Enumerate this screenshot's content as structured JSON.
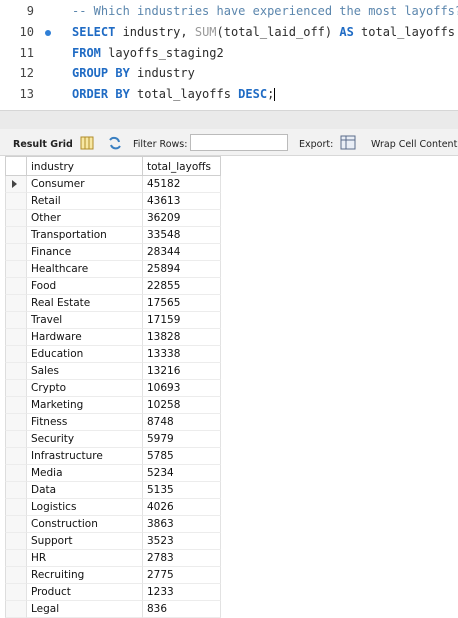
{
  "editor": {
    "lines": [
      {
        "number": 9,
        "tokens": [
          {
            "text": "-- Which industries have experienced the most layoffs?",
            "color": "#5b86ad"
          }
        ]
      },
      {
        "number": 10,
        "tokens": [
          {
            "text": "SELECT",
            "color": "#1f6bc4"
          },
          {
            "text": " industry, ",
            "color": "#2b2b2b"
          },
          {
            "text": "SUM",
            "color": "#9a9a9a"
          },
          {
            "text": "(total_laid_off) ",
            "color": "#2b2b2b"
          },
          {
            "text": "AS",
            "color": "#1f6bc4"
          },
          {
            "text": " total_layoffs",
            "color": "#2b2b2b"
          }
        ]
      },
      {
        "number": 11,
        "tokens": [
          {
            "text": "FROM",
            "color": "#1f6bc4"
          },
          {
            "text": " layoffs_staging2",
            "color": "#2b2b2b"
          }
        ]
      },
      {
        "number": 12,
        "tokens": [
          {
            "text": "GROUP BY",
            "color": "#1f6bc4"
          },
          {
            "text": " industry",
            "color": "#2b2b2b"
          }
        ]
      },
      {
        "number": 13,
        "tokens": [
          {
            "text": "ORDER BY",
            "color": "#1f6bc4"
          },
          {
            "text": " total_layoffs ",
            "color": "#2b2b2b"
          },
          {
            "text": "DESC",
            "color": "#1f6bc4"
          },
          {
            "text": ";",
            "color": "#2b2b2b"
          }
        ]
      }
    ]
  },
  "toolbar": {
    "result_grid": "Result Grid",
    "filter_rows": "Filter Rows:",
    "export": "Export:",
    "wrap": "Wrap Cell Content:"
  },
  "table": {
    "columns": [
      "industry",
      "total_layoffs"
    ],
    "rows": [
      [
        "Consumer",
        45182
      ],
      [
        "Retail",
        43613
      ],
      [
        "Other",
        36209
      ],
      [
        "Transportation",
        33548
      ],
      [
        "Finance",
        28344
      ],
      [
        "Healthcare",
        25894
      ],
      [
        "Food",
        22855
      ],
      [
        "Real Estate",
        17565
      ],
      [
        "Travel",
        17159
      ],
      [
        "Hardware",
        13828
      ],
      [
        "Education",
        13338
      ],
      [
        "Sales",
        13216
      ],
      [
        "Crypto",
        10693
      ],
      [
        "Marketing",
        10258
      ],
      [
        "Fitness",
        8748
      ],
      [
        "Security",
        5979
      ],
      [
        "Infrastructure",
        5785
      ],
      [
        "Media",
        5234
      ],
      [
        "Data",
        5135
      ],
      [
        "Logistics",
        4026
      ],
      [
        "Construction",
        3863
      ],
      [
        "Support",
        3523
      ],
      [
        "HR",
        2783
      ],
      [
        "Recruiting",
        2775
      ],
      [
        "Product",
        1233
      ],
      [
        "Legal",
        836
      ]
    ]
  }
}
